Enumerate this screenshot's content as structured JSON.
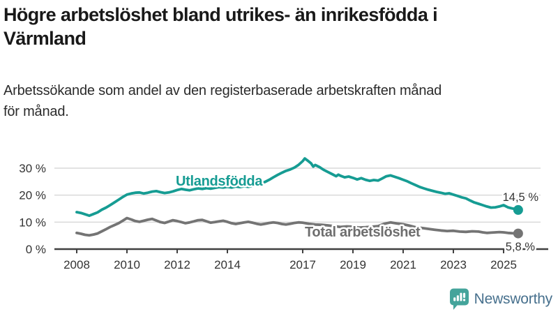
{
  "header": {
    "title_line1": "Högre arbetslöshet bland utrikes- än inrikesfödda i",
    "title_line2": "Värmland",
    "subtitle_line1": "Arbetssökande som andel av den registerbaserade arbetskraften månad",
    "subtitle_line2": "för månad."
  },
  "footer": {
    "brand": "Newsworthy"
  },
  "colors": {
    "accent_teal": "#169c93",
    "series_gray": "#747474",
    "grid": "#d9d9d9",
    "axis": "#404040",
    "tick_text": "#333333",
    "brand_blue": "#47708d",
    "brand_icon_teal": "#44a49b"
  },
  "chart_data": {
    "type": "line",
    "title": "Högre arbetslöshet bland utrikes- än inrikesfödda i Värmland",
    "subtitle": "Arbetssökande som andel av den registerbaserade arbetskraften månad för månad.",
    "xlabel": "",
    "ylabel": "",
    "unit": "%",
    "x_range": [
      2008,
      2025.6
    ],
    "ylim": [
      0,
      34
    ],
    "grid": "horizontal",
    "legend_position": "inline-labels",
    "y_ticks": [
      {
        "value": 30,
        "label": "30 %"
      },
      {
        "value": 20,
        "label": "20 %"
      },
      {
        "value": 10,
        "label": "10 %"
      },
      {
        "value": 0,
        "label": "0 %"
      }
    ],
    "x_ticks": [
      {
        "value": 2008,
        "label": "2008"
      },
      {
        "value": 2010,
        "label": "2010"
      },
      {
        "value": 2012,
        "label": "2012"
      },
      {
        "value": 2014,
        "label": "2014"
      },
      {
        "value": 2017,
        "label": "2017"
      },
      {
        "value": 2019,
        "label": "2019"
      },
      {
        "value": 2021,
        "label": "2021"
      },
      {
        "value": 2023,
        "label": "2023"
      },
      {
        "value": 2025,
        "label": "2025"
      }
    ],
    "series": [
      {
        "name": "Utlandsfödda",
        "color": "#169c93",
        "end_label": "14,5 %",
        "end_value": 14.5,
        "points": [
          [
            2008.0,
            13.7
          ],
          [
            2008.17,
            13.4
          ],
          [
            2008.33,
            12.9
          ],
          [
            2008.5,
            12.4
          ],
          [
            2008.67,
            13.0
          ],
          [
            2008.83,
            13.6
          ],
          [
            2009.0,
            14.6
          ],
          [
            2009.17,
            15.4
          ],
          [
            2009.33,
            16.3
          ],
          [
            2009.5,
            17.3
          ],
          [
            2009.67,
            18.3
          ],
          [
            2009.83,
            19.3
          ],
          [
            2010.0,
            20.2
          ],
          [
            2010.17,
            20.6
          ],
          [
            2010.33,
            20.9
          ],
          [
            2010.5,
            21.0
          ],
          [
            2010.67,
            20.6
          ],
          [
            2010.83,
            20.9
          ],
          [
            2011.0,
            21.3
          ],
          [
            2011.17,
            21.5
          ],
          [
            2011.33,
            21.1
          ],
          [
            2011.5,
            20.8
          ],
          [
            2011.67,
            21.0
          ],
          [
            2011.83,
            21.4
          ],
          [
            2012.0,
            21.9
          ],
          [
            2012.17,
            22.3
          ],
          [
            2012.33,
            22.0
          ],
          [
            2012.5,
            21.8
          ],
          [
            2012.67,
            22.2
          ],
          [
            2012.83,
            22.5
          ],
          [
            2013.0,
            22.3
          ],
          [
            2013.17,
            22.6
          ],
          [
            2013.33,
            22.4
          ],
          [
            2013.5,
            22.7
          ],
          [
            2013.67,
            23.0
          ],
          [
            2013.83,
            22.8
          ],
          [
            2014.0,
            23.1
          ],
          [
            2014.17,
            22.8
          ],
          [
            2014.33,
            23.2
          ],
          [
            2014.5,
            23.0
          ],
          [
            2014.67,
            23.3
          ],
          [
            2014.83,
            23.1
          ],
          [
            2015.0,
            23.4
          ],
          [
            2015.17,
            23.8
          ],
          [
            2015.33,
            24.3
          ],
          [
            2015.5,
            24.9
          ],
          [
            2015.67,
            25.7
          ],
          [
            2015.83,
            26.6
          ],
          [
            2016.0,
            27.5
          ],
          [
            2016.17,
            28.3
          ],
          [
            2016.33,
            29.0
          ],
          [
            2016.5,
            29.5
          ],
          [
            2016.67,
            30.2
          ],
          [
            2016.83,
            31.2
          ],
          [
            2017.0,
            32.6
          ],
          [
            2017.08,
            33.6
          ],
          [
            2017.17,
            33.0
          ],
          [
            2017.33,
            31.8
          ],
          [
            2017.42,
            30.6
          ],
          [
            2017.5,
            31.2
          ],
          [
            2017.67,
            30.4
          ],
          [
            2017.83,
            29.4
          ],
          [
            2018.0,
            28.6
          ],
          [
            2018.17,
            27.8
          ],
          [
            2018.33,
            27.0
          ],
          [
            2018.42,
            27.6
          ],
          [
            2018.5,
            27.2
          ],
          [
            2018.67,
            26.6
          ],
          [
            2018.83,
            26.9
          ],
          [
            2019.0,
            26.4
          ],
          [
            2019.17,
            25.8
          ],
          [
            2019.33,
            26.3
          ],
          [
            2019.5,
            25.7
          ],
          [
            2019.67,
            25.3
          ],
          [
            2019.83,
            25.6
          ],
          [
            2020.0,
            25.4
          ],
          [
            2020.17,
            26.2
          ],
          [
            2020.33,
            27.0
          ],
          [
            2020.5,
            27.3
          ],
          [
            2020.67,
            26.8
          ],
          [
            2020.83,
            26.3
          ],
          [
            2021.0,
            25.7
          ],
          [
            2021.17,
            25.1
          ],
          [
            2021.33,
            24.4
          ],
          [
            2021.5,
            23.7
          ],
          [
            2021.67,
            23.0
          ],
          [
            2021.83,
            22.5
          ],
          [
            2022.0,
            22.0
          ],
          [
            2022.17,
            21.6
          ],
          [
            2022.33,
            21.2
          ],
          [
            2022.5,
            20.9
          ],
          [
            2022.67,
            20.5
          ],
          [
            2022.83,
            20.7
          ],
          [
            2023.0,
            20.2
          ],
          [
            2023.17,
            19.7
          ],
          [
            2023.33,
            19.2
          ],
          [
            2023.5,
            18.8
          ],
          [
            2023.67,
            18.0
          ],
          [
            2023.83,
            17.3
          ],
          [
            2024.0,
            16.8
          ],
          [
            2024.17,
            16.3
          ],
          [
            2024.33,
            15.8
          ],
          [
            2024.5,
            15.4
          ],
          [
            2024.67,
            15.5
          ],
          [
            2024.83,
            15.8
          ],
          [
            2025.0,
            16.3
          ],
          [
            2025.17,
            15.5
          ],
          [
            2025.33,
            15.1
          ],
          [
            2025.5,
            14.8
          ],
          [
            2025.58,
            14.5
          ]
        ]
      },
      {
        "name": "Total arbetslöshet",
        "color": "#747474",
        "end_label": "5,8 %",
        "end_value": 5.8,
        "points": [
          [
            2008.0,
            6.0
          ],
          [
            2008.17,
            5.7
          ],
          [
            2008.33,
            5.3
          ],
          [
            2008.5,
            5.1
          ],
          [
            2008.67,
            5.4
          ],
          [
            2008.83,
            5.8
          ],
          [
            2009.0,
            6.6
          ],
          [
            2009.17,
            7.4
          ],
          [
            2009.33,
            8.2
          ],
          [
            2009.5,
            8.9
          ],
          [
            2009.67,
            9.6
          ],
          [
            2009.83,
            10.5
          ],
          [
            2010.0,
            11.5
          ],
          [
            2010.17,
            11.0
          ],
          [
            2010.33,
            10.4
          ],
          [
            2010.5,
            10.1
          ],
          [
            2010.67,
            10.5
          ],
          [
            2010.83,
            10.9
          ],
          [
            2011.0,
            11.2
          ],
          [
            2011.17,
            10.6
          ],
          [
            2011.33,
            10.0
          ],
          [
            2011.5,
            9.7
          ],
          [
            2011.67,
            10.2
          ],
          [
            2011.83,
            10.7
          ],
          [
            2012.0,
            10.4
          ],
          [
            2012.17,
            10.0
          ],
          [
            2012.33,
            9.6
          ],
          [
            2012.5,
            9.9
          ],
          [
            2012.67,
            10.3
          ],
          [
            2012.83,
            10.7
          ],
          [
            2013.0,
            10.8
          ],
          [
            2013.17,
            10.3
          ],
          [
            2013.33,
            9.8
          ],
          [
            2013.5,
            10.0
          ],
          [
            2013.67,
            10.3
          ],
          [
            2013.83,
            10.5
          ],
          [
            2014.0,
            10.1
          ],
          [
            2014.17,
            9.6
          ],
          [
            2014.33,
            9.3
          ],
          [
            2014.5,
            9.6
          ],
          [
            2014.67,
            9.9
          ],
          [
            2014.83,
            10.1
          ],
          [
            2015.0,
            9.8
          ],
          [
            2015.17,
            9.4
          ],
          [
            2015.33,
            9.1
          ],
          [
            2015.5,
            9.4
          ],
          [
            2015.67,
            9.7
          ],
          [
            2015.83,
            9.9
          ],
          [
            2016.0,
            9.7
          ],
          [
            2016.17,
            9.3
          ],
          [
            2016.33,
            9.1
          ],
          [
            2016.5,
            9.4
          ],
          [
            2016.67,
            9.7
          ],
          [
            2016.83,
            9.9
          ],
          [
            2017.0,
            9.8
          ],
          [
            2017.25,
            9.4
          ],
          [
            2017.5,
            9.1
          ],
          [
            2017.75,
            9.0
          ],
          [
            2018.0,
            8.8
          ],
          [
            2018.25,
            8.5
          ],
          [
            2018.5,
            8.2
          ],
          [
            2018.75,
            8.4
          ],
          [
            2019.0,
            8.3
          ],
          [
            2019.25,
            8.0
          ],
          [
            2019.5,
            8.1
          ],
          [
            2019.75,
            8.3
          ],
          [
            2020.0,
            8.5
          ],
          [
            2020.25,
            9.4
          ],
          [
            2020.5,
            9.9
          ],
          [
            2020.75,
            9.5
          ],
          [
            2021.0,
            9.2
          ],
          [
            2021.25,
            8.7
          ],
          [
            2021.5,
            8.1
          ],
          [
            2021.75,
            7.8
          ],
          [
            2022.0,
            7.5
          ],
          [
            2022.25,
            7.2
          ],
          [
            2022.5,
            6.9
          ],
          [
            2022.75,
            6.7
          ],
          [
            2023.0,
            6.8
          ],
          [
            2023.25,
            6.5
          ],
          [
            2023.5,
            6.4
          ],
          [
            2023.75,
            6.6
          ],
          [
            2024.0,
            6.5
          ],
          [
            2024.17,
            6.2
          ],
          [
            2024.33,
            6.0
          ],
          [
            2024.5,
            6.1
          ],
          [
            2024.67,
            6.2
          ],
          [
            2024.83,
            6.3
          ],
          [
            2025.0,
            6.2
          ],
          [
            2025.17,
            6.0
          ],
          [
            2025.33,
            5.9
          ],
          [
            2025.5,
            5.85
          ],
          [
            2025.58,
            5.8
          ]
        ]
      }
    ]
  }
}
